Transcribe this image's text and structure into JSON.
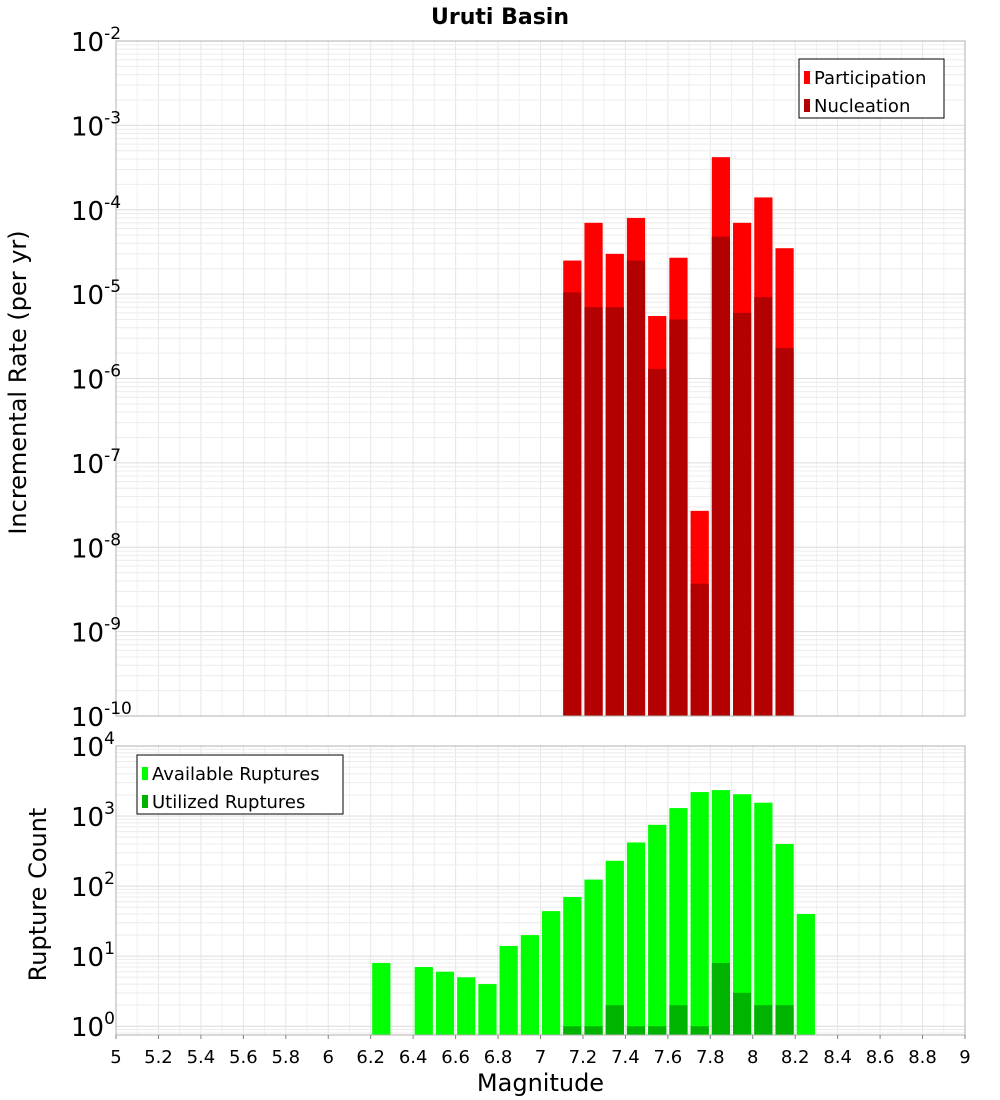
{
  "chart_data": [
    {
      "type": "bar",
      "title": "Uruti Basin",
      "ylabel": "Incremental Rate (per yr)",
      "xlabel": "",
      "yscale": "log",
      "ylim": [
        1e-10,
        0.01
      ],
      "xlim": [
        5,
        9
      ],
      "ytick_exponents": [
        -10,
        -9,
        -8,
        -7,
        -6,
        -5,
        -4,
        -3,
        -2
      ],
      "legend_placement": "top-right",
      "grid": true,
      "bar_width": 0.1,
      "x": [
        7.15,
        7.25,
        7.35,
        7.45,
        7.55,
        7.65,
        7.75,
        7.85,
        7.95,
        8.05,
        8.15
      ],
      "series": [
        {
          "name": "Participation",
          "color": "#ff0000",
          "values": [
            2.5e-05,
            7e-05,
            3e-05,
            8e-05,
            5.5e-06,
            2.7e-05,
            2.7e-08,
            0.00042,
            7e-05,
            0.00014,
            3.5e-05
          ]
        },
        {
          "name": "Nucleation",
          "color": "#b30000",
          "values": [
            1.05e-05,
            7e-06,
            7e-06,
            2.5e-05,
            1.3e-06,
            5e-06,
            3.7e-09,
            4.8e-05,
            6e-06,
            9.2e-06,
            2.3e-06
          ]
        }
      ]
    },
    {
      "type": "bar",
      "title": "",
      "ylabel": "Rupture Count",
      "xlabel": "Magnitude",
      "yscale": "log",
      "ylim": [
        0.75,
        10000
      ],
      "xlim": [
        5,
        9
      ],
      "ytick_exponents": [
        0,
        1,
        2,
        3,
        4
      ],
      "xticks": [
        "5",
        "5.2",
        "5.4",
        "5.6",
        "5.8",
        "6",
        "6.2",
        "6.4",
        "6.6",
        "6.8",
        "7",
        "7.2",
        "7.4",
        "7.6",
        "7.8",
        "8",
        "8.2",
        "8.4",
        "8.6",
        "8.8",
        "9"
      ],
      "legend_placement": "top-left",
      "grid": true,
      "bar_width": 0.1,
      "series": [
        {
          "name": "Available Ruptures",
          "color": "#00ff00",
          "x": [
            6.25,
            6.45,
            6.55,
            6.65,
            6.75,
            6.85,
            6.95,
            7.05,
            7.15,
            7.25,
            7.35,
            7.45,
            7.55,
            7.65,
            7.75,
            7.85,
            7.95,
            8.05,
            8.15,
            8.25
          ],
          "values": [
            8,
            7,
            6,
            5,
            4,
            14,
            20,
            44,
            70,
            124,
            230,
            420,
            750,
            1300,
            2200,
            2350,
            2050,
            1550,
            400,
            40
          ]
        },
        {
          "name": "Utilized Ruptures",
          "color": "#00b300",
          "x": [
            7.15,
            7.25,
            7.35,
            7.45,
            7.55,
            7.65,
            7.75,
            7.85,
            7.95,
            8.05,
            8.15
          ],
          "values": [
            1,
            1,
            2,
            1,
            1,
            2,
            1,
            8,
            3,
            2,
            2
          ]
        }
      ]
    }
  ]
}
